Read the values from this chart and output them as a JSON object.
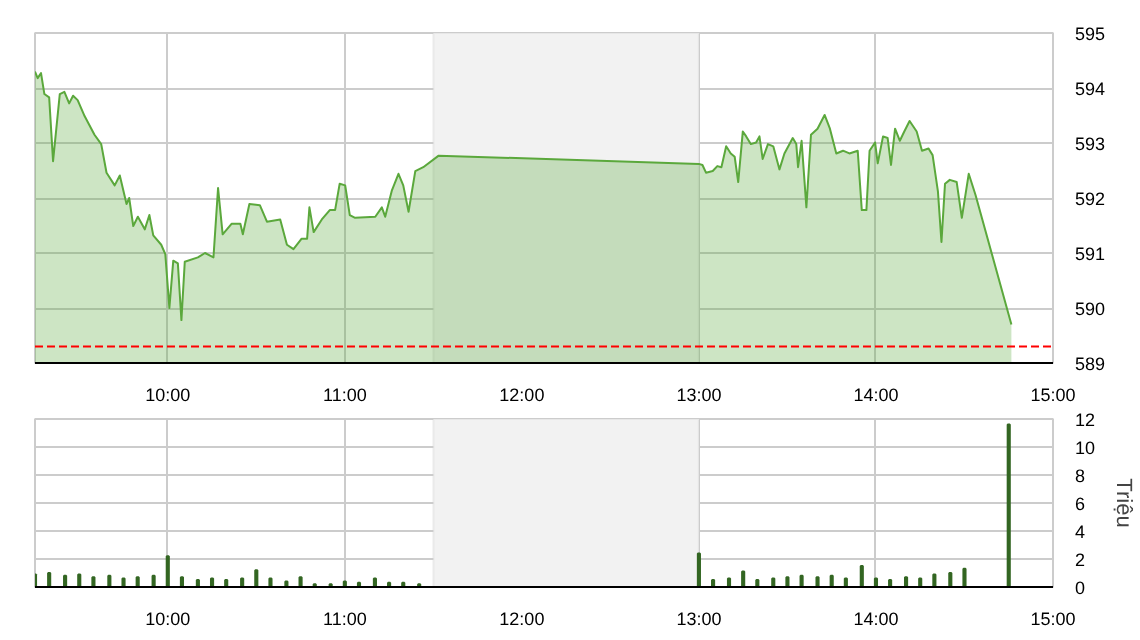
{
  "chart_data": [
    {
      "type": "area",
      "color": "#5ba83c",
      "grid": true,
      "x": [
        9.25,
        9.265,
        9.284,
        9.303,
        9.33,
        9.352,
        9.39,
        9.416,
        9.443,
        9.465,
        9.491,
        9.53,
        9.586,
        9.624,
        9.654,
        9.7,
        9.729,
        9.767,
        9.782,
        9.805,
        9.831,
        9.87,
        9.896,
        9.918,
        9.963,
        9.986,
        10.009,
        10.031,
        10.057,
        10.077,
        10.096,
        10.17,
        10.21,
        10.258,
        10.284,
        10.31,
        10.36,
        10.41,
        10.424,
        10.461,
        10.52,
        10.56,
        10.635,
        10.673,
        10.71,
        10.756,
        10.787,
        10.8,
        10.824,
        10.87,
        10.915,
        10.945,
        10.971,
        11.002,
        11.028,
        11.058,
        11.172,
        11.209,
        11.228,
        11.266,
        11.303,
        11.33,
        11.36,
        11.398,
        11.443,
        11.53,
        13.0,
        13.02,
        13.04,
        13.078,
        13.104,
        13.127,
        13.154,
        13.18,
        13.202,
        13.222,
        13.248,
        13.267,
        13.293,
        13.323,
        13.342,
        13.36,
        13.39,
        13.42,
        13.455,
        13.483,
        13.53,
        13.55,
        13.56,
        13.58,
        13.607,
        13.633,
        13.67,
        13.71,
        13.74,
        13.776,
        13.814,
        13.85,
        13.897,
        13.92,
        13.946,
        13.964,
        13.995,
        14.01,
        14.04,
        14.066,
        14.085,
        14.108,
        14.135,
        14.16,
        14.19,
        14.23,
        14.26,
        14.297,
        14.32,
        14.35,
        14.37,
        14.39,
        14.417,
        14.456,
        14.485,
        14.524,
        14.562,
        14.765
      ],
      "values": [
        594.3,
        594.18,
        594.27,
        593.89,
        593.83,
        592.67,
        593.89,
        593.93,
        593.72,
        593.86,
        593.78,
        593.49,
        593.15,
        592.98,
        592.46,
        592.23,
        592.41,
        591.89,
        592.0,
        591.49,
        591.66,
        591.43,
        591.69,
        591.32,
        591.15,
        590.98,
        590.0,
        590.86,
        590.81,
        589.78,
        590.84,
        590.92,
        591.0,
        590.92,
        592.18,
        591.34,
        591.53,
        591.53,
        591.34,
        591.89,
        591.87,
        591.57,
        591.61,
        591.15,
        591.07,
        591.26,
        591.26,
        591.83,
        591.38,
        591.61,
        591.78,
        591.78,
        592.26,
        592.23,
        591.69,
        591.64,
        591.66,
        591.83,
        591.66,
        592.14,
        592.44,
        592.23,
        591.75,
        592.49,
        592.56,
        592.77,
        592.62,
        592.6,
        592.46,
        592.49,
        592.58,
        592.56,
        592.94,
        592.81,
        592.75,
        592.29,
        593.21,
        593.12,
        592.98,
        593.01,
        593.12,
        592.71,
        592.98,
        592.94,
        592.52,
        592.81,
        593.09,
        592.98,
        592.56,
        593.04,
        591.83,
        593.15,
        593.26,
        593.51,
        593.26,
        592.81,
        592.86,
        592.81,
        592.86,
        591.78,
        591.78,
        592.86,
        593.01,
        592.63,
        593.12,
        593.09,
        592.6,
        593.26,
        593.04,
        593.21,
        593.4,
        593.21,
        592.86,
        592.9,
        592.78,
        592.12,
        591.2,
        592.26,
        592.33,
        592.29,
        591.64,
        592.44,
        592.06,
        589.7
      ],
      "xlim": [
        9.25,
        15
      ],
      "xticks": [
        {
          "value": 10,
          "label": "10:00"
        },
        {
          "value": 11,
          "label": "11:00"
        },
        {
          "value": 12,
          "label": "12:00"
        },
        {
          "value": 13,
          "label": "13:00"
        },
        {
          "value": 14,
          "label": "14:00"
        },
        {
          "value": 15,
          "label": "15:00"
        }
      ],
      "ylim": [
        589,
        595
      ],
      "yticks": [
        589,
        590,
        591,
        592,
        593,
        594,
        595
      ],
      "ref_lines": [
        {
          "axis": "y",
          "value": 589.3,
          "color": "#ff0000",
          "line_style": "dashed"
        }
      ],
      "bands": [
        {
          "axis": "x",
          "from": 11.5,
          "to": 13,
          "color": "#f2f2f2"
        }
      ]
    },
    {
      "type": "bar",
      "color": "#336622",
      "grid": true,
      "ylabel": "Triệu",
      "x": [
        9.25,
        9.33,
        9.42,
        9.5,
        9.58,
        9.67,
        9.75,
        9.83,
        9.92,
        10.0,
        10.08,
        10.17,
        10.25,
        10.33,
        10.42,
        10.5,
        10.58,
        10.67,
        10.75,
        10.83,
        10.92,
        11.0,
        11.08,
        11.17,
        11.25,
        11.33,
        11.42,
        13.0,
        13.08,
        13.17,
        13.25,
        13.33,
        13.42,
        13.5,
        13.58,
        13.67,
        13.75,
        13.83,
        13.92,
        14.0,
        14.08,
        14.17,
        14.25,
        14.33,
        14.42,
        14.5,
        14.75
      ],
      "values": [
        0.9,
        1.0,
        0.8,
        0.9,
        0.7,
        0.8,
        0.6,
        0.7,
        0.8,
        2.2,
        0.7,
        0.5,
        0.6,
        0.5,
        0.6,
        1.2,
        0.6,
        0.4,
        0.7,
        0.2,
        0.2,
        0.4,
        0.3,
        0.6,
        0.3,
        0.3,
        0.2,
        2.4,
        0.5,
        0.6,
        1.1,
        0.5,
        0.6,
        0.7,
        0.8,
        0.7,
        0.8,
        0.6,
        1.5,
        0.6,
        0.5,
        0.7,
        0.6,
        0.9,
        1.0,
        1.3,
        11.6
      ],
      "xlim": [
        9.25,
        15
      ],
      "xticks": [
        {
          "value": 10,
          "label": "10:00"
        },
        {
          "value": 11,
          "label": "11:00"
        },
        {
          "value": 12,
          "label": "12:00"
        },
        {
          "value": 13,
          "label": "13:00"
        },
        {
          "value": 14,
          "label": "14:00"
        },
        {
          "value": 15,
          "label": "15:00"
        }
      ],
      "ylim": [
        0,
        12
      ],
      "yticks": [
        0,
        2,
        4,
        6,
        8,
        10,
        12
      ],
      "bands": [
        {
          "axis": "x",
          "from": 11.5,
          "to": 13,
          "color": "#f2f2f2"
        }
      ]
    }
  ]
}
